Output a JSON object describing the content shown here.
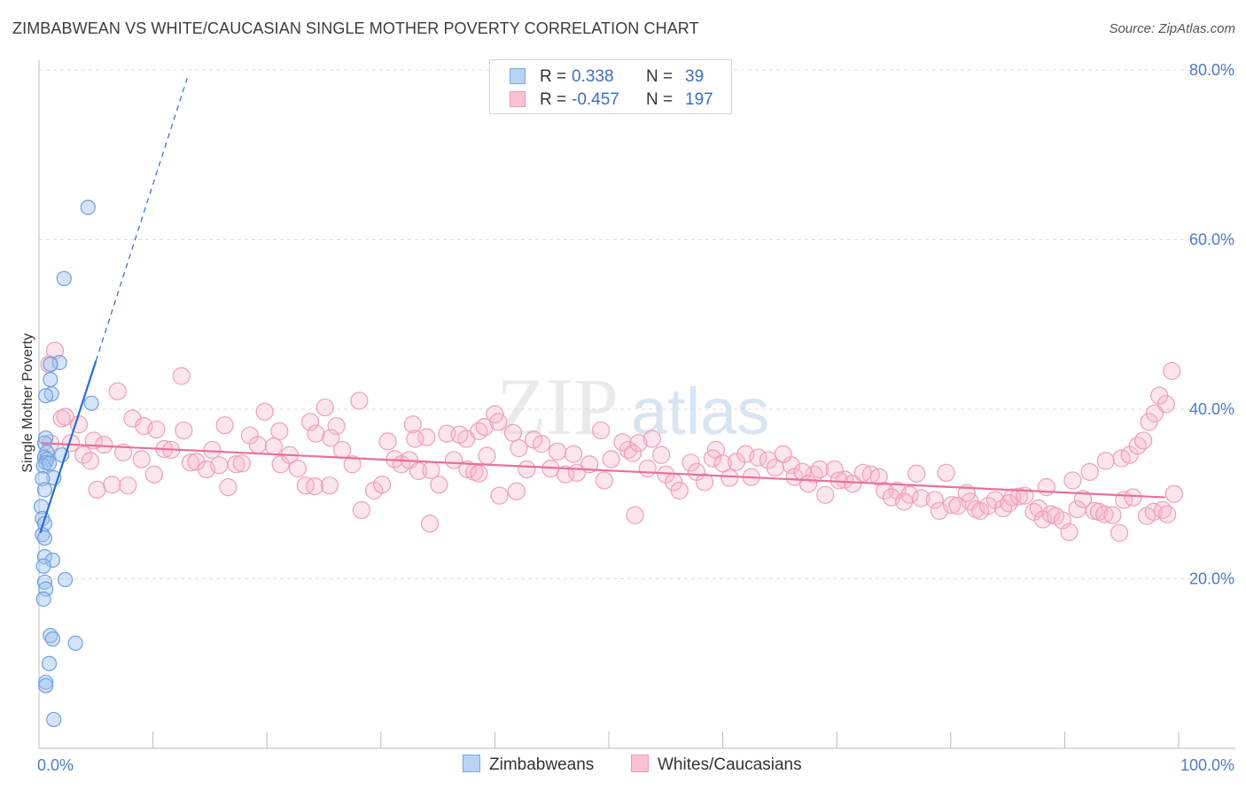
{
  "header": {
    "title": "ZIMBABWEAN VS WHITE/CAUCASIAN SINGLE MOTHER POVERTY CORRELATION CHART",
    "source": "Source: ZipAtlas.com"
  },
  "watermark": {
    "zip": "ZIP",
    "atlas": "atlas"
  },
  "legend": {
    "r_label": "R =",
    "n_label": "N =",
    "series": [
      {
        "name": "Zimbabweans",
        "r": "0.338",
        "n": "39",
        "fill": "#b9d3f5",
        "stroke": "#7aa7e3"
      },
      {
        "name": "Whites/Caucasians",
        "r": "-0.457",
        "n": "197",
        "fill": "#f8c4d4",
        "stroke": "#ec9ab4"
      }
    ]
  },
  "colors": {
    "blue_point_fill": "rgba(160,196,240,0.45)",
    "blue_point_stroke": "#6f9fe0",
    "blue_line": "#2a6bd1",
    "pink_point_fill": "rgba(246,180,200,0.35)",
    "pink_point_stroke": "#ee9fb8",
    "pink_line": "#e8709a",
    "grid": "#dddddd",
    "axis": "#bbbbbb",
    "tick_text": "#4a7cc7"
  },
  "chart_data": {
    "type": "scatter",
    "title": "ZIMBABWEAN VS WHITE/CAUCASIAN SINGLE MOTHER POVERTY CORRELATION CHART",
    "xlabel": "",
    "ylabel": "Single Mother Poverty",
    "xlim": [
      0,
      100
    ],
    "ylim": [
      0,
      80
    ],
    "x_tick_labels": [
      {
        "value": 0,
        "label": "0.0%"
      },
      {
        "value": 100,
        "label": "100.0%"
      }
    ],
    "y_tick_labels": [
      {
        "value": 20,
        "label": "20.0%"
      },
      {
        "value": 40,
        "label": "40.0%"
      },
      {
        "value": 60,
        "label": "60.0%"
      },
      {
        "value": 80,
        "label": "80.0%"
      }
    ],
    "x_minor_ticks": [
      0,
      10,
      20,
      30,
      40,
      50,
      60,
      70,
      80,
      90,
      100
    ],
    "gridlines": "horizontal dashed",
    "legend_position": "top-center",
    "series": [
      {
        "name": "Zimbabweans",
        "r": 0.338,
        "n": 39,
        "trend": {
          "x0": 0.1,
          "y0": 25.4,
          "x1": 5.0,
          "y1": 45.7,
          "dashed_to_x": 13.0,
          "dashed_to_y": 79.0
        },
        "points": [
          [
            4.3,
            63.8
          ],
          [
            2.2,
            55.4
          ],
          [
            1.8,
            45.5
          ],
          [
            1.0,
            45.3
          ],
          [
            1.0,
            43.5
          ],
          [
            1.1,
            41.8
          ],
          [
            0.6,
            41.6
          ],
          [
            4.6,
            40.7
          ],
          [
            0.6,
            36.6
          ],
          [
            0.5,
            36.0
          ],
          [
            0.7,
            34.9
          ],
          [
            2.0,
            34.6
          ],
          [
            0.5,
            34.3
          ],
          [
            0.7,
            34.1
          ],
          [
            0.6,
            33.7
          ],
          [
            0.4,
            33.3
          ],
          [
            0.9,
            33.6
          ],
          [
            1.3,
            31.9
          ],
          [
            0.3,
            31.8
          ],
          [
            0.2,
            28.5
          ],
          [
            0.3,
            27.1
          ],
          [
            0.5,
            26.5
          ],
          [
            0.3,
            25.2
          ],
          [
            0.5,
            24.8
          ],
          [
            0.5,
            22.6
          ],
          [
            1.2,
            22.2
          ],
          [
            0.4,
            21.5
          ],
          [
            2.3,
            19.9
          ],
          [
            0.5,
            19.6
          ],
          [
            0.6,
            18.8
          ],
          [
            0.4,
            17.6
          ],
          [
            1.0,
            13.3
          ],
          [
            1.2,
            12.9
          ],
          [
            3.2,
            12.4
          ],
          [
            0.9,
            10.0
          ],
          [
            0.6,
            7.8
          ],
          [
            0.6,
            7.4
          ],
          [
            1.3,
            3.4
          ],
          [
            0.5,
            30.5
          ]
        ]
      },
      {
        "name": "Whites/Caucasians",
        "r": -0.457,
        "n": 197,
        "trend": {
          "x0": 0.2,
          "y0": 36.0,
          "x1": 98.8,
          "y1": 29.6
        },
        "points": [
          [
            1.4,
            46.9
          ],
          [
            0.9,
            45.3
          ],
          [
            12.5,
            43.9
          ],
          [
            6.9,
            42.1
          ],
          [
            2.0,
            38.9
          ],
          [
            2.3,
            39.1
          ],
          [
            3.5,
            38.2
          ],
          [
            1.0,
            36.0
          ],
          [
            2.8,
            36.0
          ],
          [
            4.8,
            36.3
          ],
          [
            5.7,
            35.8
          ],
          [
            3.9,
            34.6
          ],
          [
            7.4,
            34.9
          ],
          [
            8.2,
            38.9
          ],
          [
            9.2,
            38.0
          ],
          [
            10.3,
            37.6
          ],
          [
            12.7,
            37.5
          ],
          [
            16.3,
            38.1
          ],
          [
            19.8,
            39.7
          ],
          [
            21.1,
            37.4
          ],
          [
            23.8,
            38.5
          ],
          [
            24.3,
            37.1
          ],
          [
            25.1,
            40.2
          ],
          [
            26.1,
            38.0
          ],
          [
            30.6,
            36.2
          ],
          [
            32.8,
            38.2
          ],
          [
            34.0,
            36.7
          ],
          [
            35.8,
            37.1
          ],
          [
            37.5,
            36.5
          ],
          [
            38.6,
            37.4
          ],
          [
            40.0,
            39.4
          ],
          [
            40.3,
            38.5
          ],
          [
            41.6,
            37.2
          ],
          [
            42.1,
            35.4
          ],
          [
            43.4,
            36.4
          ],
          [
            45.5,
            35.0
          ],
          [
            46.9,
            34.7
          ],
          [
            49.3,
            37.5
          ],
          [
            51.7,
            35.2
          ],
          [
            52.1,
            34.8
          ],
          [
            53.8,
            36.5
          ],
          [
            54.6,
            34.6
          ],
          [
            57.2,
            33.7
          ],
          [
            59.4,
            35.2
          ],
          [
            61.2,
            33.8
          ],
          [
            66.0,
            33.4
          ],
          [
            68.0,
            32.3
          ],
          [
            69.8,
            32.9
          ],
          [
            70.7,
            31.7
          ],
          [
            73.0,
            32.3
          ],
          [
            73.7,
            32.0
          ],
          [
            75.3,
            30.4
          ],
          [
            77.0,
            32.4
          ],
          [
            79.6,
            32.5
          ],
          [
            81.7,
            29.1
          ],
          [
            85.4,
            29.6
          ],
          [
            88.4,
            30.8
          ],
          [
            90.7,
            31.6
          ],
          [
            92.2,
            32.6
          ],
          [
            93.6,
            33.9
          ],
          [
            95.0,
            34.2
          ],
          [
            95.7,
            34.6
          ],
          [
            96.4,
            35.7
          ],
          [
            96.9,
            36.3
          ],
          [
            97.4,
            38.5
          ],
          [
            97.9,
            39.5
          ],
          [
            98.3,
            41.6
          ],
          [
            98.9,
            40.6
          ],
          [
            99.4,
            44.5
          ],
          [
            4.5,
            33.9
          ],
          [
            5.1,
            30.5
          ],
          [
            6.4,
            31.1
          ],
          [
            7.8,
            31.0
          ],
          [
            9.0,
            34.1
          ],
          [
            10.1,
            32.3
          ],
          [
            11.0,
            35.3
          ],
          [
            11.6,
            35.2
          ],
          [
            13.3,
            33.7
          ],
          [
            13.8,
            33.8
          ],
          [
            14.7,
            32.9
          ],
          [
            15.2,
            35.2
          ],
          [
            15.8,
            33.4
          ],
          [
            16.6,
            30.8
          ],
          [
            17.3,
            33.5
          ],
          [
            17.8,
            33.6
          ],
          [
            18.5,
            36.9
          ],
          [
            19.2,
            35.8
          ],
          [
            20.6,
            35.6
          ],
          [
            21.2,
            33.5
          ],
          [
            22.0,
            34.6
          ],
          [
            22.7,
            33.0
          ],
          [
            23.4,
            31.0
          ],
          [
            24.2,
            30.9
          ],
          [
            25.5,
            31.0
          ],
          [
            26.6,
            35.2
          ],
          [
            27.5,
            33.5
          ],
          [
            28.3,
            28.1
          ],
          [
            29.4,
            30.4
          ],
          [
            30.1,
            31.1
          ],
          [
            31.2,
            34.1
          ],
          [
            31.8,
            33.5
          ],
          [
            32.5,
            34.0
          ],
          [
            33.3,
            32.7
          ],
          [
            34.4,
            32.8
          ],
          [
            35.1,
            31.1
          ],
          [
            36.4,
            34.0
          ],
          [
            37.6,
            32.9
          ],
          [
            38.2,
            32.6
          ],
          [
            39.3,
            34.5
          ],
          [
            40.4,
            29.8
          ],
          [
            41.9,
            30.3
          ],
          [
            42.8,
            32.9
          ],
          [
            44.1,
            35.9
          ],
          [
            44.9,
            33.0
          ],
          [
            46.2,
            32.3
          ],
          [
            47.2,
            32.5
          ],
          [
            48.3,
            33.5
          ],
          [
            49.6,
            31.6
          ],
          [
            50.2,
            34.1
          ],
          [
            51.2,
            36.1
          ],
          [
            52.6,
            36.0
          ],
          [
            53.4,
            33.0
          ],
          [
            55.0,
            32.3
          ],
          [
            55.7,
            31.4
          ],
          [
            56.2,
            30.4
          ],
          [
            57.7,
            32.6
          ],
          [
            58.4,
            31.4
          ],
          [
            59.1,
            34.2
          ],
          [
            60.0,
            33.6
          ],
          [
            60.6,
            31.9
          ],
          [
            62.0,
            34.7
          ],
          [
            62.5,
            32.0
          ],
          [
            63.1,
            34.3
          ],
          [
            64.0,
            34.0
          ],
          [
            64.6,
            33.1
          ],
          [
            65.3,
            34.7
          ],
          [
            66.3,
            32.0
          ],
          [
            67.0,
            32.6
          ],
          [
            67.5,
            31.2
          ],
          [
            68.5,
            32.9
          ],
          [
            69.0,
            29.9
          ],
          [
            70.2,
            31.6
          ],
          [
            71.4,
            31.2
          ],
          [
            72.3,
            32.5
          ],
          [
            74.2,
            30.4
          ],
          [
            74.8,
            29.6
          ],
          [
            75.9,
            29.1
          ],
          [
            76.4,
            29.9
          ],
          [
            77.4,
            29.5
          ],
          [
            78.6,
            29.3
          ],
          [
            79.0,
            28.0
          ],
          [
            80.1,
            28.7
          ],
          [
            80.6,
            28.6
          ],
          [
            81.4,
            30.1
          ],
          [
            82.2,
            28.2
          ],
          [
            82.6,
            28.0
          ],
          [
            83.3,
            28.6
          ],
          [
            83.9,
            29.3
          ],
          [
            84.6,
            28.3
          ],
          [
            85.1,
            28.9
          ],
          [
            86.0,
            29.7
          ],
          [
            86.5,
            29.8
          ],
          [
            87.3,
            27.9
          ],
          [
            87.7,
            28.3
          ],
          [
            88.1,
            27.0
          ],
          [
            88.8,
            27.6
          ],
          [
            89.2,
            27.4
          ],
          [
            89.8,
            26.9
          ],
          [
            90.4,
            25.5
          ],
          [
            91.1,
            28.2
          ],
          [
            91.6,
            29.4
          ],
          [
            92.6,
            28.0
          ],
          [
            93.0,
            27.9
          ],
          [
            93.5,
            27.6
          ],
          [
            94.2,
            27.5
          ],
          [
            94.8,
            25.4
          ],
          [
            95.2,
            29.3
          ],
          [
            96.0,
            29.6
          ],
          [
            97.2,
            27.4
          ],
          [
            97.8,
            27.9
          ],
          [
            98.6,
            28.1
          ],
          [
            99.0,
            27.6
          ],
          [
            99.6,
            30.0
          ],
          [
            28.1,
            41.0
          ],
          [
            39.1,
            37.9
          ],
          [
            36.9,
            37.0
          ],
          [
            33.0,
            36.5
          ],
          [
            25.6,
            36.6
          ],
          [
            52.3,
            27.5
          ],
          [
            34.3,
            26.5
          ],
          [
            38.6,
            32.4
          ]
        ]
      }
    ]
  }
}
